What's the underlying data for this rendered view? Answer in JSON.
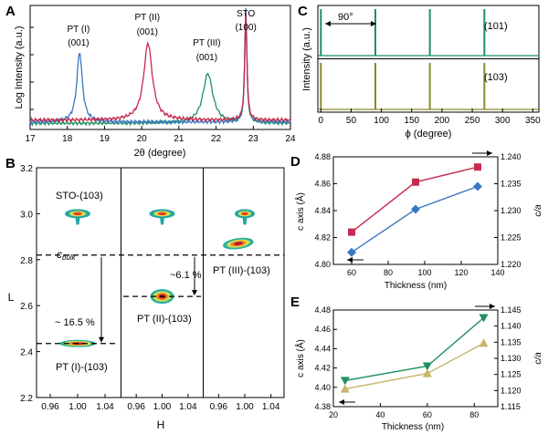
{
  "panels": [
    "A",
    "B",
    "C",
    "D",
    "E"
  ],
  "chart_data": [
    {
      "panel": "A",
      "type": "line",
      "xlabel": "2θ (degree)",
      "ylabel": "Log Intensity (a.u.)",
      "xlim": [
        17,
        24
      ],
      "xticks": [
        "17",
        "18",
        "19",
        "20",
        "21",
        "22",
        "23",
        "24"
      ],
      "annotations": [
        {
          "lines": [
            "PT (I)",
            "(001)"
          ],
          "x": 18.3
        },
        {
          "lines": [
            "PT (II)",
            "(001)"
          ],
          "x": 20.15
        },
        {
          "lines": [
            "PT (III)",
            "(001)"
          ],
          "x": 21.75
        },
        {
          "lines": [
            "STO",
            "(100)"
          ],
          "x": 22.8
        }
      ],
      "colors": {
        "PT (I)": "#3a78c2",
        "PT (II)": "#c62a4e",
        "PT (III)": "#1f9060"
      },
      "peaks": [
        {
          "series": "PT (I)",
          "x": 18.33,
          "height": 0.56,
          "width": 0.09
        },
        {
          "series": "PT (II)",
          "x": 20.17,
          "height": 0.62,
          "width": 0.14
        },
        {
          "series": "PT (III)",
          "x": 21.78,
          "height": 0.4,
          "width": 0.16
        },
        {
          "series": "STO",
          "x": 22.8,
          "height": 0.93,
          "width": 0.035
        }
      ]
    },
    {
      "panel": "B",
      "type": "heatmap",
      "xlabel": "H",
      "ylabel": "L",
      "ylim": [
        2.2,
        3.2
      ],
      "yticks": [
        "2.2",
        "2.4",
        "2.6",
        "2.8",
        "3.0",
        "3.2"
      ],
      "xticks": [
        "0.96",
        "1.00",
        "1.04"
      ],
      "subplots": [
        {
          "spots": [
            {
              "H": 1.0,
              "L": 3.0
            },
            {
              "H": 1.0,
              "L": 2.435
            }
          ],
          "label": "PT (I)-(103)"
        },
        {
          "spots": [
            {
              "H": 1.0,
              "L": 3.0
            },
            {
              "H": 1.0,
              "L": 2.64
            }
          ],
          "label": "PT (II)-(103)"
        },
        {
          "spots": [
            {
              "H": 1.0,
              "L": 3.0
            },
            {
              "H": 0.99,
              "L": 2.87
            }
          ],
          "label": "PT (III)-(103)"
        }
      ],
      "annotations": {
        "sto": "STO-(103)",
        "cbulk": "c",
        "cbulk_sub": "bulk",
        "p1": "~ 16.5 %",
        "p2": "~6.1 %"
      },
      "cbulk_L": 2.82
    },
    {
      "panel": "C",
      "type": "line",
      "xlabel": "ϕ (degree)",
      "ylabel": "Intensity (a.u.)",
      "xlim": [
        -5,
        360
      ],
      "xticks": [
        "0",
        "50",
        "100",
        "150",
        "200",
        "250",
        "300",
        "350"
      ],
      "annotation": "90°",
      "series": [
        {
          "name": "(101)",
          "color": "#1f9060",
          "peaks": [
            0,
            90,
            180,
            270
          ]
        },
        {
          "name": "(103)",
          "color": "#8a8a30",
          "peaks": [
            0,
            90,
            180,
            270
          ]
        }
      ]
    },
    {
      "panel": "D",
      "type": "scatter",
      "xlabel": "Thickness (nm)",
      "ylabel": "c axis (Å)",
      "y2label": "c/a",
      "xlim": [
        50,
        140
      ],
      "ylim": [
        4.8,
        4.88
      ],
      "y2lim": [
        1.22,
        1.24
      ],
      "xticks": [
        "60",
        "80",
        "100",
        "120",
        "140"
      ],
      "yticks": [
        "4.80",
        "4.82",
        "4.84",
        "4.86",
        "4.88"
      ],
      "y2ticks": [
        "1.220",
        "1.225",
        "1.230",
        "1.235",
        "1.240"
      ],
      "series": [
        {
          "axis": "left",
          "color": "#3a78c2",
          "marker": "diamond",
          "x": [
            60,
            95,
            129
          ],
          "y": [
            4.809,
            4.841,
            4.858
          ]
        },
        {
          "axis": "right",
          "color": "#c62a4e",
          "marker": "square",
          "x": [
            60,
            95,
            129
          ],
          "y": [
            1.226,
            1.2353,
            1.2381
          ]
        }
      ]
    },
    {
      "panel": "E",
      "type": "scatter",
      "xlabel": "Thickness (nm)",
      "ylabel": "c axis (Å)",
      "y2label": "c/a",
      "xlim": [
        20,
        90
      ],
      "ylim": [
        4.38,
        4.48
      ],
      "y2lim": [
        1.115,
        1.145
      ],
      "xticks": [
        "20",
        "40",
        "60",
        "80"
      ],
      "yticks": [
        "4.38",
        "4.40",
        "4.42",
        "4.44",
        "4.46",
        "4.48"
      ],
      "y2ticks": [
        "1.115",
        "1.120",
        "1.125",
        "1.130",
        "1.135",
        "1.140",
        "1.145"
      ],
      "series": [
        {
          "axis": "left",
          "color": "#1f9060",
          "marker": "triangle-down",
          "x": [
            25,
            60,
            84
          ],
          "y": [
            4.407,
            4.422,
            4.472
          ]
        },
        {
          "axis": "right",
          "color": "#c8b46a",
          "marker": "triangle-up",
          "x": [
            25,
            60,
            84
          ],
          "y": [
            1.1205,
            1.1253,
            1.1347
          ]
        }
      ]
    }
  ]
}
